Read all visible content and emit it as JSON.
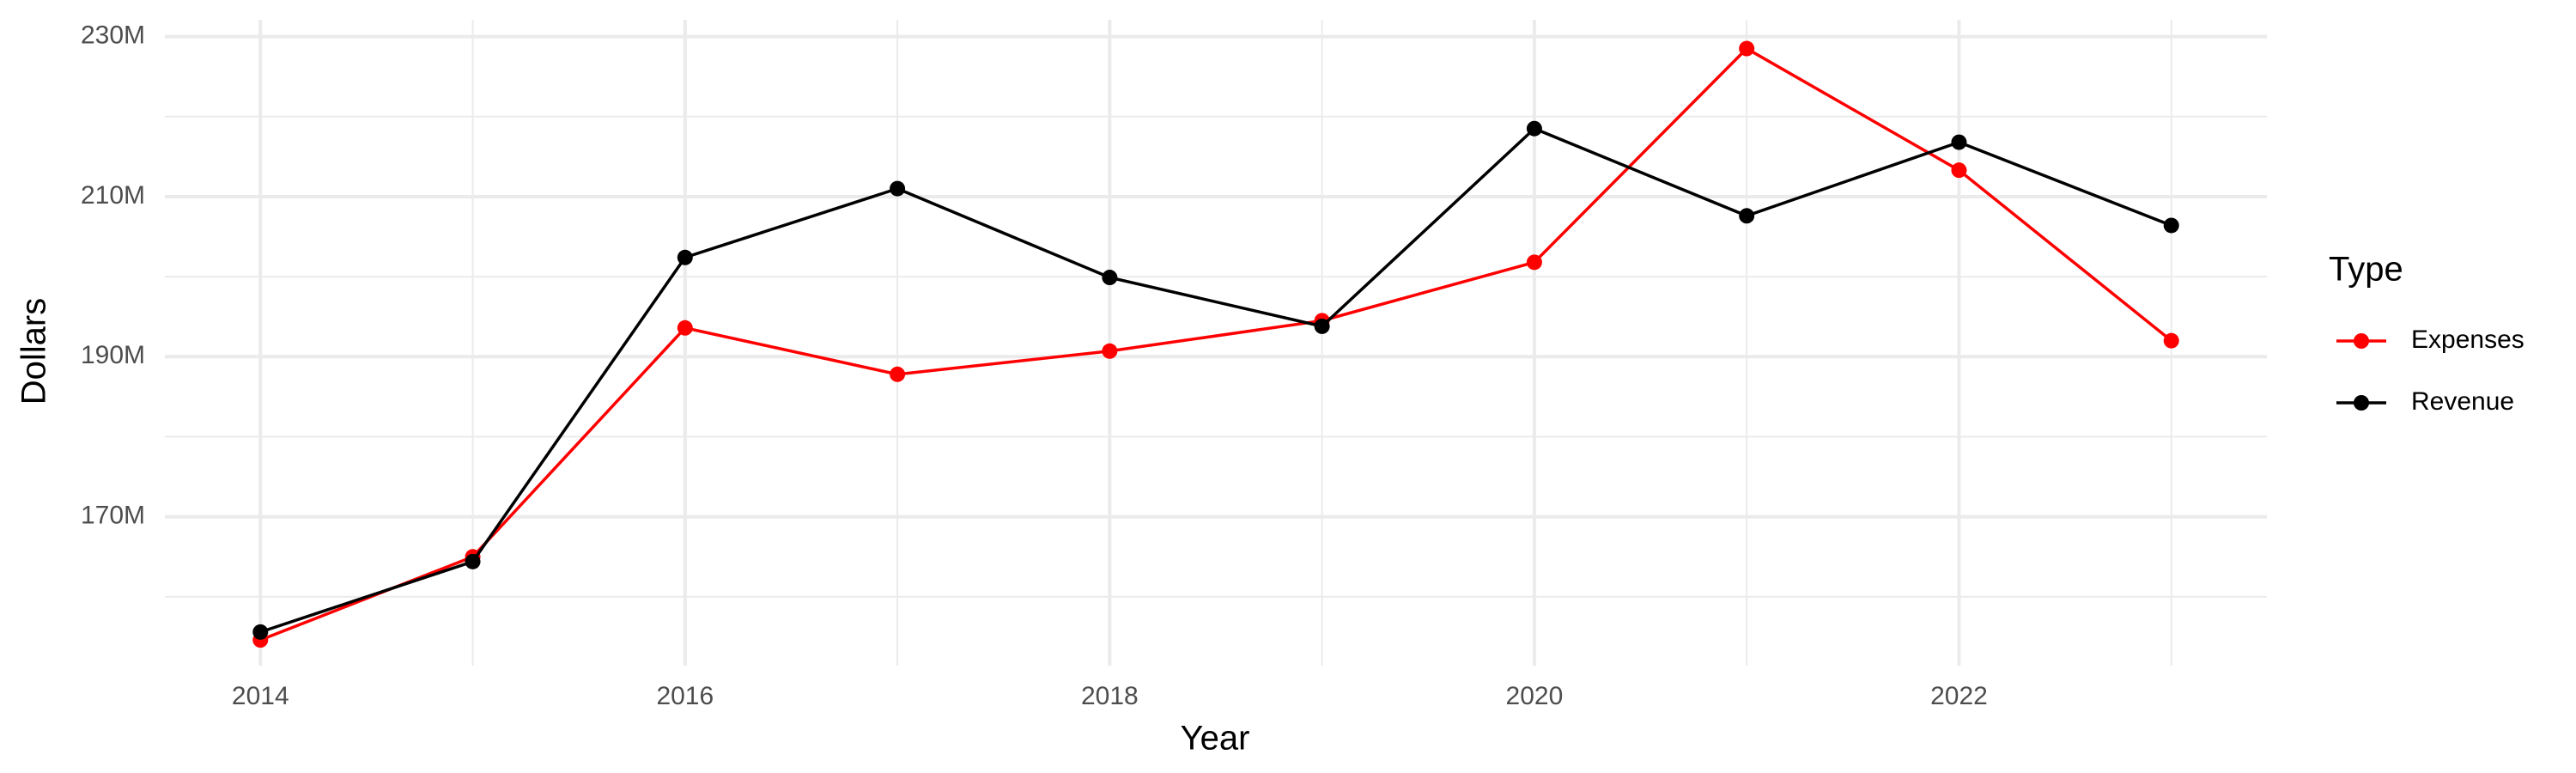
{
  "chart_data": {
    "type": "line",
    "x_label": "Year",
    "y_label": "Dollars",
    "legend_title": "Type",
    "legend_position": "right",
    "grid": true,
    "x": [
      2014,
      2015,
      2016,
      2017,
      2018,
      2019,
      2020,
      2021,
      2022,
      2023
    ],
    "series": [
      {
        "name": "Expenses",
        "color": "#ff0000",
        "values": [
          154600000,
          165000000,
          193600000,
          187800000,
          190700000,
          194500000,
          201800000,
          228500000,
          213300000,
          192000000
        ]
      },
      {
        "name": "Revenue",
        "color": "#000000",
        "values": [
          155600000,
          164400000,
          202400000,
          211000000,
          199900000,
          193800000,
          218500000,
          207600000,
          216800000,
          206400000
        ]
      }
    ],
    "xlim": [
      2013.55,
      2023.45
    ],
    "xticks": [
      2014,
      2016,
      2018,
      2020,
      2022
    ],
    "ylim": [
      151400000,
      232100000
    ],
    "yticks": [
      {
        "value": 170000000,
        "label": "170M"
      },
      {
        "value": 190000000,
        "label": "190M"
      },
      {
        "value": 210000000,
        "label": "210M"
      },
      {
        "value": 230000000,
        "label": "230M"
      }
    ]
  }
}
